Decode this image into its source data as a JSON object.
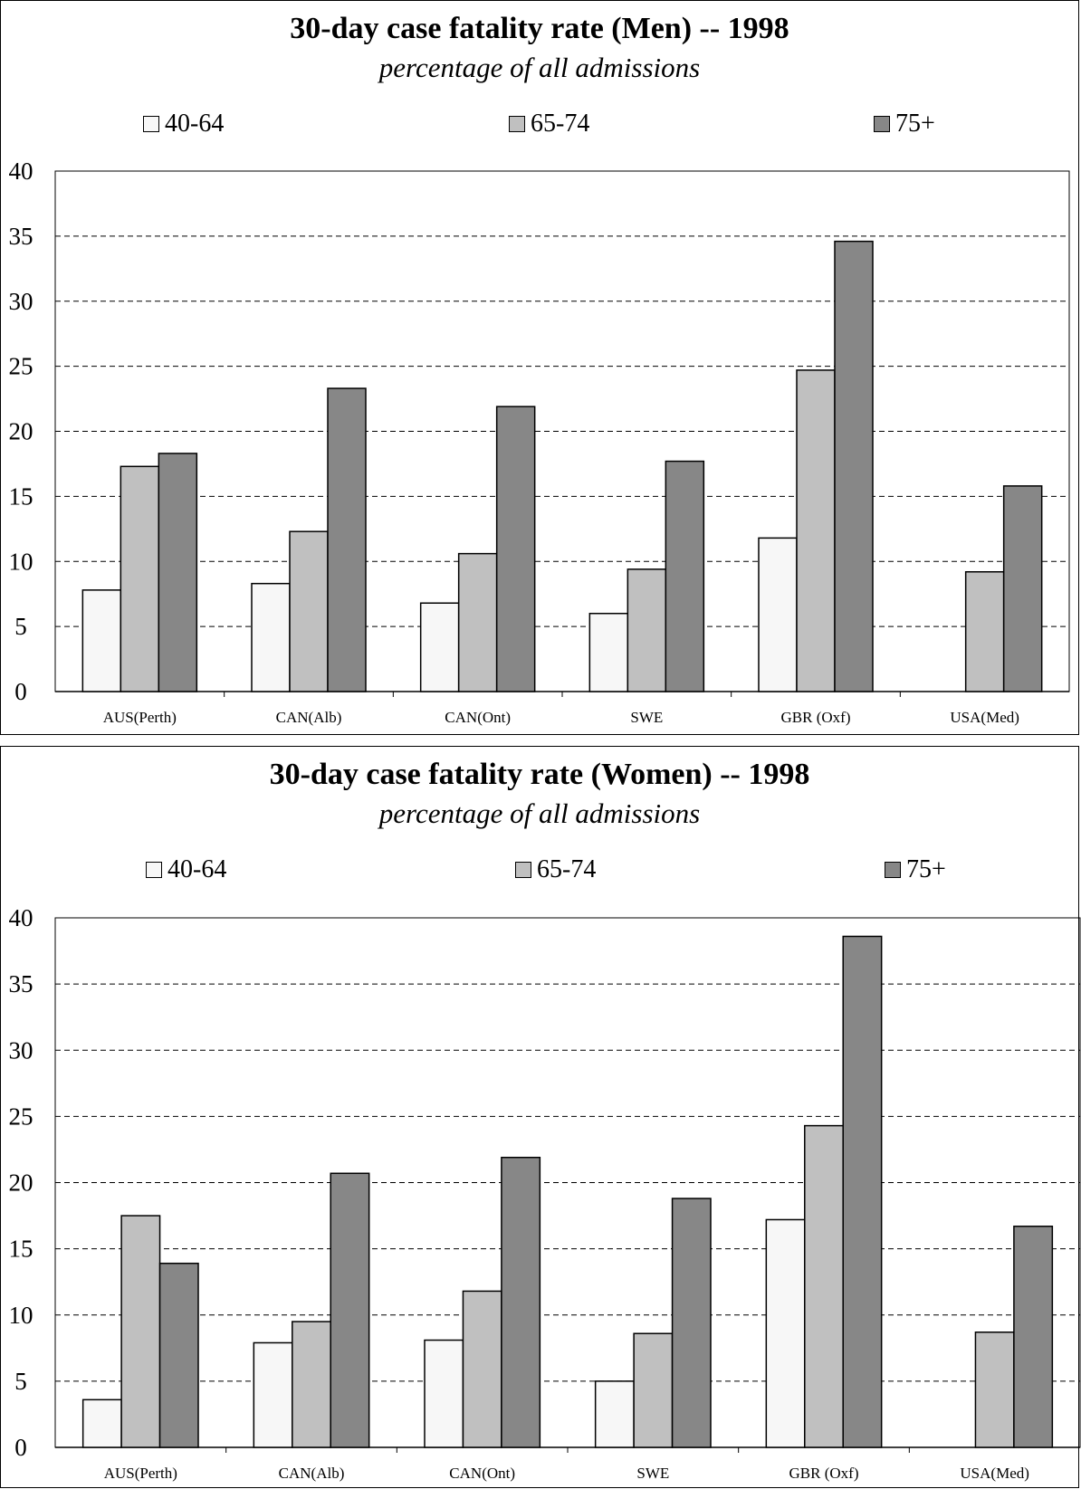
{
  "chart_data": [
    {
      "type": "bar",
      "title": "30-day case fatality rate (Men) -- 1998",
      "subtitle": "percentage of all admissions",
      "categories": [
        "AUS(Perth)",
        "CAN(Alb)",
        "CAN(Ont)",
        "SWE",
        "GBR (Oxf)",
        "USA(Med)"
      ],
      "series": [
        {
          "name": "40-64",
          "color": "#f7f7f7",
          "values": [
            7.8,
            8.3,
            6.8,
            6.0,
            11.8,
            null
          ]
        },
        {
          "name": "65-74",
          "color": "#c0c0c0",
          "values": [
            17.3,
            12.3,
            10.6,
            9.4,
            24.7,
            9.2
          ]
        },
        {
          "name": "75+",
          "color": "#878787",
          "values": [
            18.3,
            23.3,
            21.9,
            17.7,
            34.6,
            15.8
          ]
        }
      ],
      "ylim": [
        0,
        40
      ],
      "yticks": [
        0,
        5,
        10,
        15,
        20,
        25,
        30,
        35,
        40
      ],
      "grid": true,
      "legend_position": "top"
    },
    {
      "type": "bar",
      "title": "30-day case fatality rate (Women) -- 1998",
      "subtitle": "percentage of all admissions",
      "categories": [
        "AUS(Perth)",
        "CAN(Alb)",
        "CAN(Ont)",
        "SWE",
        "GBR (Oxf)",
        "USA(Med)"
      ],
      "series": [
        {
          "name": "40-64",
          "color": "#f7f7f7",
          "values": [
            3.6,
            7.9,
            8.1,
            5.0,
            17.2,
            null
          ]
        },
        {
          "name": "65-74",
          "color": "#c0c0c0",
          "values": [
            17.5,
            9.5,
            11.8,
            8.6,
            24.3,
            8.7
          ]
        },
        {
          "name": "75+",
          "color": "#878787",
          "values": [
            13.9,
            20.7,
            21.9,
            18.8,
            38.6,
            16.7
          ]
        }
      ],
      "ylim": [
        0,
        40
      ],
      "yticks": [
        0,
        5,
        10,
        15,
        20,
        25,
        30,
        35,
        40
      ],
      "grid": true,
      "legend_position": "top"
    }
  ]
}
